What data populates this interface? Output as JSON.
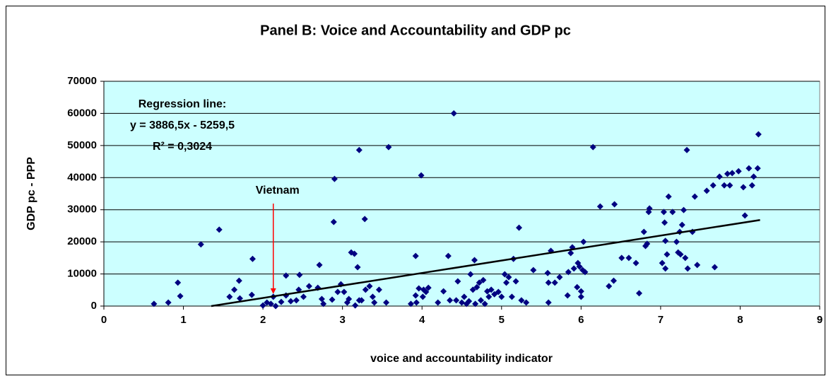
{
  "chart_data": {
    "type": "scatter",
    "title": "Panel B: Voice and Accountability and GDP pc",
    "x_label": "voice and accountability indicator",
    "y_label": "GDP pc - PPP",
    "xlim": [
      0,
      9
    ],
    "xticks": [
      0,
      1,
      2,
      3,
      4,
      5,
      6,
      7,
      8,
      9
    ],
    "ylim": [
      0,
      70000
    ],
    "yticks": [
      0,
      10000,
      20000,
      30000,
      40000,
      50000,
      60000,
      70000
    ],
    "grid": true,
    "background": "#ccffff",
    "series": [
      {
        "color": "#000080",
        "marker": "diamond",
        "x": [
          0.63,
          0.81,
          0.93,
          0.96,
          1.22,
          1.45,
          1.58,
          1.64,
          1.7,
          1.71,
          1.86,
          1.87,
          2.0,
          2.05,
          2.1,
          2.13,
          2.16,
          2.23,
          2.29,
          2.29,
          2.35,
          2.42,
          2.45,
          2.46,
          2.51,
          2.58,
          2.69,
          2.71,
          2.74,
          2.76,
          2.87,
          2.89,
          2.9,
          2.94,
          2.98,
          3.02,
          3.06,
          3.08,
          3.11,
          3.15,
          3.16,
          3.19,
          3.21,
          3.21,
          3.24,
          3.28,
          3.29,
          3.34,
          3.38,
          3.4,
          3.46,
          3.55,
          3.58,
          3.86,
          3.92,
          3.92,
          3.93,
          3.96,
          3.99,
          4.01,
          4.02,
          4.05,
          4.08,
          4.2,
          4.27,
          4.33,
          4.35,
          4.4,
          4.43,
          4.45,
          4.5,
          4.53,
          4.56,
          4.59,
          4.61,
          4.64,
          4.66,
          4.67,
          4.69,
          4.72,
          4.74,
          4.77,
          4.79,
          4.82,
          4.84,
          4.87,
          4.91,
          4.96,
          5.0,
          5.04,
          5.06,
          5.09,
          5.13,
          5.15,
          5.18,
          5.22,
          5.25,
          5.31,
          5.4,
          5.58,
          5.59,
          5.59,
          5.62,
          5.67,
          5.73,
          5.83,
          5.84,
          5.87,
          5.89,
          5.91,
          5.95,
          5.96,
          5.98,
          6.0,
          6.0,
          6.02,
          6.03,
          6.05,
          6.15,
          6.24,
          6.35,
          6.41,
          6.42,
          6.51,
          6.6,
          6.69,
          6.73,
          6.79,
          6.81,
          6.83,
          6.85,
          6.86,
          7.02,
          7.04,
          7.05,
          7.06,
          7.06,
          7.08,
          7.1,
          7.15,
          7.2,
          7.22,
          7.24,
          7.25,
          7.27,
          7.29,
          7.31,
          7.33,
          7.34,
          7.4,
          7.43,
          7.46,
          7.58,
          7.66,
          7.68,
          7.74,
          7.8,
          7.84,
          7.87,
          7.9,
          7.98,
          8.04,
          8.06,
          8.11,
          8.15,
          8.17,
          8.22,
          8.23
        ],
        "values": [
          700,
          1100,
          7300,
          3100,
          19200,
          23800,
          2900,
          5100,
          7900,
          2400,
          3500,
          14700,
          200,
          1100,
          700,
          2900,
          0,
          1300,
          3300,
          9500,
          1500,
          1800,
          5100,
          9700,
          2900,
          6200,
          5700,
          12800,
          2200,
          700,
          2000,
          26200,
          39600,
          4400,
          6800,
          4400,
          1100,
          2200,
          16700,
          16300,
          200,
          12100,
          1800,
          48600,
          1800,
          27100,
          5100,
          6200,
          2900,
          1100,
          5100,
          1100,
          49500,
          700,
          3300,
          15600,
          1100,
          5500,
          40700,
          2900,
          5100,
          4400,
          5700,
          1100,
          4600,
          15600,
          1800,
          60000,
          1800,
          7700,
          1100,
          2900,
          700,
          1500,
          9900,
          5100,
          14300,
          700,
          5900,
          7300,
          1800,
          8100,
          700,
          4600,
          2900,
          5100,
          3700,
          4400,
          2900,
          9900,
          7300,
          9000,
          2900,
          14700,
          7700,
          24400,
          1800,
          1100,
          11200,
          10300,
          7300,
          1100,
          17200,
          7300,
          9000,
          3300,
          10600,
          16500,
          18300,
          11700,
          5900,
          13400,
          12300,
          2900,
          4600,
          11200,
          20000,
          10600,
          49500,
          31000,
          6200,
          7900,
          31700,
          15000,
          15000,
          13400,
          4000,
          23100,
          18700,
          19400,
          29300,
          30400,
          13400,
          29300,
          26000,
          20300,
          11700,
          16100,
          34100,
          29300,
          20000,
          16700,
          23100,
          16100,
          25300,
          29900,
          15000,
          48600,
          11700,
          23100,
          34100,
          12800,
          35900,
          37600,
          12100,
          40300,
          37600,
          41200,
          37600,
          41400,
          42000,
          37000,
          28200,
          42900,
          37600,
          40300,
          42900,
          53500
        ]
      },
      {
        "color": "#000000",
        "type": "line",
        "x": [
          1.35,
          8.25
        ],
        "values": [
          0,
          26804
        ]
      }
    ],
    "annotations": [
      {
        "text": "Regression line:"
      },
      {
        "text": "y = 3886,5x - 5259,5"
      },
      {
        "text": "R² = 0,3024"
      },
      {
        "text": "Vietnam",
        "x": 2.13,
        "y": 2900,
        "arrow_color": "#ff0000"
      }
    ]
  }
}
